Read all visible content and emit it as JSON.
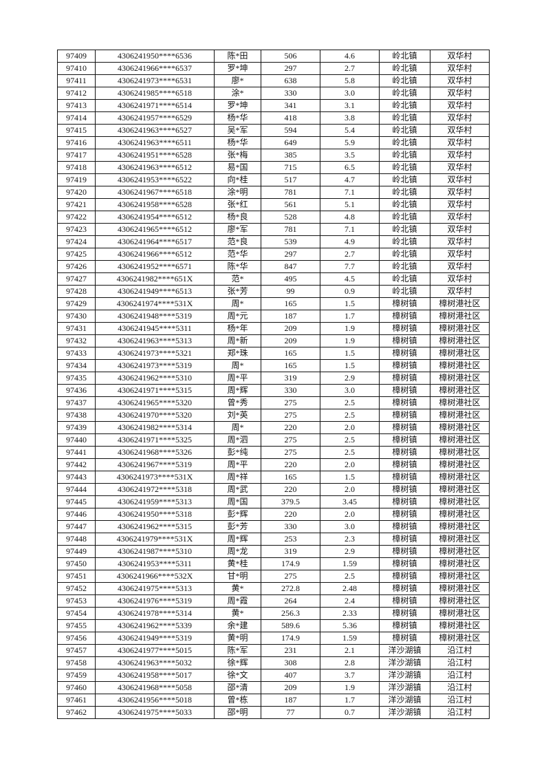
{
  "table": {
    "rows": [
      [
        "97409",
        "4306241950****6536",
        "陈*田",
        "506",
        "4.6",
        "岭北镇",
        "双华村"
      ],
      [
        "97410",
        "4306241966****6537",
        "罗*坤",
        "297",
        "2.7",
        "岭北镇",
        "双华村"
      ],
      [
        "97411",
        "4306241973****6531",
        "廖*",
        "638",
        "5.8",
        "岭北镇",
        "双华村"
      ],
      [
        "97412",
        "4306241985****6518",
        "涂*",
        "330",
        "3.0",
        "岭北镇",
        "双华村"
      ],
      [
        "97413",
        "4306241971****6514",
        "罗*坤",
        "341",
        "3.1",
        "岭北镇",
        "双华村"
      ],
      [
        "97414",
        "4306241957****6529",
        "杨*华",
        "418",
        "3.8",
        "岭北镇",
        "双华村"
      ],
      [
        "97415",
        "4306241963****6527",
        "吴*军",
        "594",
        "5.4",
        "岭北镇",
        "双华村"
      ],
      [
        "97416",
        "4306241963****6511",
        "杨*华",
        "649",
        "5.9",
        "岭北镇",
        "双华村"
      ],
      [
        "97417",
        "4306241951****6528",
        "张*梅",
        "385",
        "3.5",
        "岭北镇",
        "双华村"
      ],
      [
        "97418",
        "4306241963****6512",
        "易*国",
        "715",
        "6.5",
        "岭北镇",
        "双华村"
      ],
      [
        "97419",
        "4306241953****6522",
        "向*桂",
        "517",
        "4.7",
        "岭北镇",
        "双华村"
      ],
      [
        "97420",
        "4306241967****6518",
        "涂*明",
        "781",
        "7.1",
        "岭北镇",
        "双华村"
      ],
      [
        "97421",
        "4306241958****6528",
        "张*红",
        "561",
        "5.1",
        "岭北镇",
        "双华村"
      ],
      [
        "97422",
        "4306241954****6512",
        "杨*良",
        "528",
        "4.8",
        "岭北镇",
        "双华村"
      ],
      [
        "97423",
        "4306241965****6512",
        "廖*军",
        "781",
        "7.1",
        "岭北镇",
        "双华村"
      ],
      [
        "97424",
        "4306241964****6517",
        "范*良",
        "539",
        "4.9",
        "岭北镇",
        "双华村"
      ],
      [
        "97425",
        "4306241966****6512",
        "范*华",
        "297",
        "2.7",
        "岭北镇",
        "双华村"
      ],
      [
        "97426",
        "4306241952****6571",
        "陈*华",
        "847",
        "7.7",
        "岭北镇",
        "双华村"
      ],
      [
        "97427",
        "4306241982****651X",
        "范*",
        "495",
        "4.5",
        "岭北镇",
        "双华村"
      ],
      [
        "97428",
        "4306241949****6513",
        "张*芳",
        "99",
        "0.9",
        "岭北镇",
        "双华村"
      ],
      [
        "97429",
        "4306241974****531X",
        "周*",
        "165",
        "1.5",
        "樟树镇",
        "樟树港社区"
      ],
      [
        "97430",
        "4306241948****5319",
        "周*元",
        "187",
        "1.7",
        "樟树镇",
        "樟树港社区"
      ],
      [
        "97431",
        "4306241945****5311",
        "杨*年",
        "209",
        "1.9",
        "樟树镇",
        "樟树港社区"
      ],
      [
        "97432",
        "4306241963****5313",
        "周*新",
        "209",
        "1.9",
        "樟树镇",
        "樟树港社区"
      ],
      [
        "97433",
        "4306241973****5321",
        "郑*珠",
        "165",
        "1.5",
        "樟树镇",
        "樟树港社区"
      ],
      [
        "97434",
        "4306241973****5319",
        "周*",
        "165",
        "1.5",
        "樟树镇",
        "樟树港社区"
      ],
      [
        "97435",
        "4306241962****5310",
        "周*平",
        "319",
        "2.9",
        "樟树镇",
        "樟树港社区"
      ],
      [
        "97436",
        "4306241971****5315",
        "周*辉",
        "330",
        "3.0",
        "樟树镇",
        "樟树港社区"
      ],
      [
        "97437",
        "4306241965****5320",
        "曾*秀",
        "275",
        "2.5",
        "樟树镇",
        "樟树港社区"
      ],
      [
        "97438",
        "4306241970****5320",
        "刘*英",
        "275",
        "2.5",
        "樟树镇",
        "樟树港社区"
      ],
      [
        "97439",
        "4306241982****5314",
        "周*",
        "220",
        "2.0",
        "樟树镇",
        "樟树港社区"
      ],
      [
        "97440",
        "4306241971****5325",
        "周*泗",
        "275",
        "2.5",
        "樟树镇",
        "樟树港社区"
      ],
      [
        "97441",
        "4306241968****5326",
        "彭*纯",
        "275",
        "2.5",
        "樟树镇",
        "樟树港社区"
      ],
      [
        "97442",
        "4306241967****5319",
        "周*平",
        "220",
        "2.0",
        "樟树镇",
        "樟树港社区"
      ],
      [
        "97443",
        "4306241973****531X",
        "周*祥",
        "165",
        "1.5",
        "樟树镇",
        "樟树港社区"
      ],
      [
        "97444",
        "4306241972****5318",
        "周*武",
        "220",
        "2.0",
        "樟树镇",
        "樟树港社区"
      ],
      [
        "97445",
        "4306241959****5313",
        "周*国",
        "379.5",
        "3.45",
        "樟树镇",
        "樟树港社区"
      ],
      [
        "97446",
        "4306241950****5318",
        "彭*辉",
        "220",
        "2.0",
        "樟树镇",
        "樟树港社区"
      ],
      [
        "97447",
        "4306241962****5315",
        "彭*芳",
        "330",
        "3.0",
        "樟树镇",
        "樟树港社区"
      ],
      [
        "97448",
        "4306241979****531X",
        "周*辉",
        "253",
        "2.3",
        "樟树镇",
        "樟树港社区"
      ],
      [
        "97449",
        "4306241987****5310",
        "周*龙",
        "319",
        "2.9",
        "樟树镇",
        "樟树港社区"
      ],
      [
        "97450",
        "4306241953****5311",
        "黄*桂",
        "174.9",
        "1.59",
        "樟树镇",
        "樟树港社区"
      ],
      [
        "97451",
        "4306241966****532X",
        "甘*明",
        "275",
        "2.5",
        "樟树镇",
        "樟树港社区"
      ],
      [
        "97452",
        "4306241975****5313",
        "黄*",
        "272.8",
        "2.48",
        "樟树镇",
        "樟树港社区"
      ],
      [
        "97453",
        "4306241976****5319",
        "周*霞",
        "264",
        "2.4",
        "樟树镇",
        "樟树港社区"
      ],
      [
        "97454",
        "4306241978****5314",
        "黄*",
        "256.3",
        "2.33",
        "樟树镇",
        "樟树港社区"
      ],
      [
        "97455",
        "4306241962****5339",
        "余*建",
        "589.6",
        "5.36",
        "樟树镇",
        "樟树港社区"
      ],
      [
        "97456",
        "4306241949****5319",
        "黄*明",
        "174.9",
        "1.59",
        "樟树镇",
        "樟树港社区"
      ],
      [
        "97457",
        "4306241977****5015",
        "陈*军",
        "231",
        "2.1",
        "洋沙湖镇",
        "沿江村"
      ],
      [
        "97458",
        "4306241963****5032",
        "徐*辉",
        "308",
        "2.8",
        "洋沙湖镇",
        "沿江村"
      ],
      [
        "97459",
        "4306241958****5017",
        "徐*文",
        "407",
        "3.7",
        "洋沙湖镇",
        "沿江村"
      ],
      [
        "97460",
        "4306241968****5058",
        "邵*清",
        "209",
        "1.9",
        "洋沙湖镇",
        "沿江村"
      ],
      [
        "97461",
        "4306241956****5018",
        "曾*栋",
        "187",
        "1.7",
        "洋沙湖镇",
        "沿江村"
      ],
      [
        "97462",
        "4306241975****5033",
        "邵*明",
        "77",
        "0.7",
        "洋沙湖镇",
        "沿江村"
      ]
    ]
  }
}
